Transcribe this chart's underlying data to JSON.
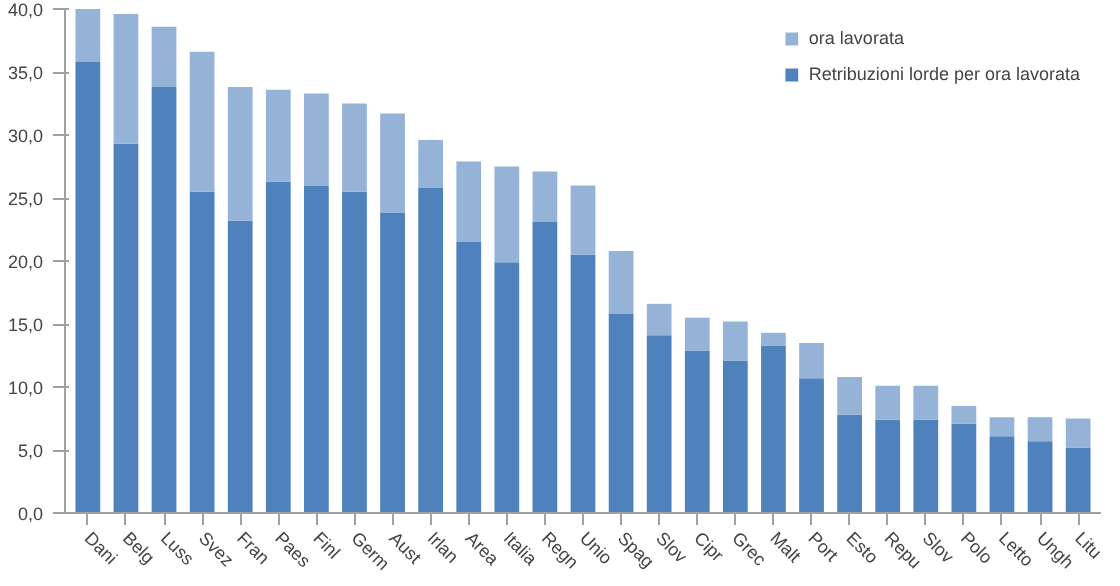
{
  "chart_data": {
    "type": "bar",
    "stacked": true,
    "categories": [
      "Dani",
      "Belg",
      "Luss",
      "Svez",
      "Fran",
      "Paes",
      "Finl",
      "Germ",
      "Aust",
      "Irlan",
      "Area",
      "Italia",
      "Regn",
      "Unio",
      "Spag",
      "Slov",
      "Cipr",
      "Grec",
      "Malt",
      "Port",
      "Esto",
      "Repu",
      "Slov",
      "Polo",
      "Letto",
      "Ungh",
      "Litu"
    ],
    "series": [
      {
        "name": "Retribuzioni lorde per ora lavorata",
        "color": "#4f81bd",
        "values": [
          35.8,
          29.3,
          33.8,
          25.5,
          23.2,
          26.3,
          26.0,
          25.5,
          23.8,
          25.8,
          21.5,
          19.9,
          23.1,
          20.5,
          15.8,
          14.1,
          12.9,
          12.1,
          13.3,
          10.7,
          7.8,
          7.4,
          7.4,
          7.1,
          6.1,
          5.7,
          5.2
        ]
      },
      {
        "name": "ora lavorata",
        "color": "#95b3d7",
        "values": [
          4.2,
          10.3,
          4.8,
          11.1,
          10.6,
          7.3,
          7.3,
          7.0,
          7.9,
          3.8,
          6.4,
          7.6,
          4.0,
          5.5,
          5.0,
          2.5,
          2.6,
          3.1,
          1.0,
          2.8,
          3.0,
          2.7,
          2.7,
          1.4,
          1.5,
          1.9,
          2.3
        ]
      }
    ],
    "ylim": [
      0,
      40
    ],
    "yticks": [
      {
        "value": 0,
        "label": "0,0"
      },
      {
        "value": 5,
        "label": "5,0"
      },
      {
        "value": 10,
        "label": "10,0"
      },
      {
        "value": 15,
        "label": "15,0"
      },
      {
        "value": 20,
        "label": "20,0"
      },
      {
        "value": 25,
        "label": "25,0"
      },
      {
        "value": 30,
        "label": "30,0"
      },
      {
        "value": 35,
        "label": "35,0"
      },
      {
        "value": 40,
        "label": "40,0"
      }
    ],
    "grid": false,
    "legend": "top right"
  }
}
